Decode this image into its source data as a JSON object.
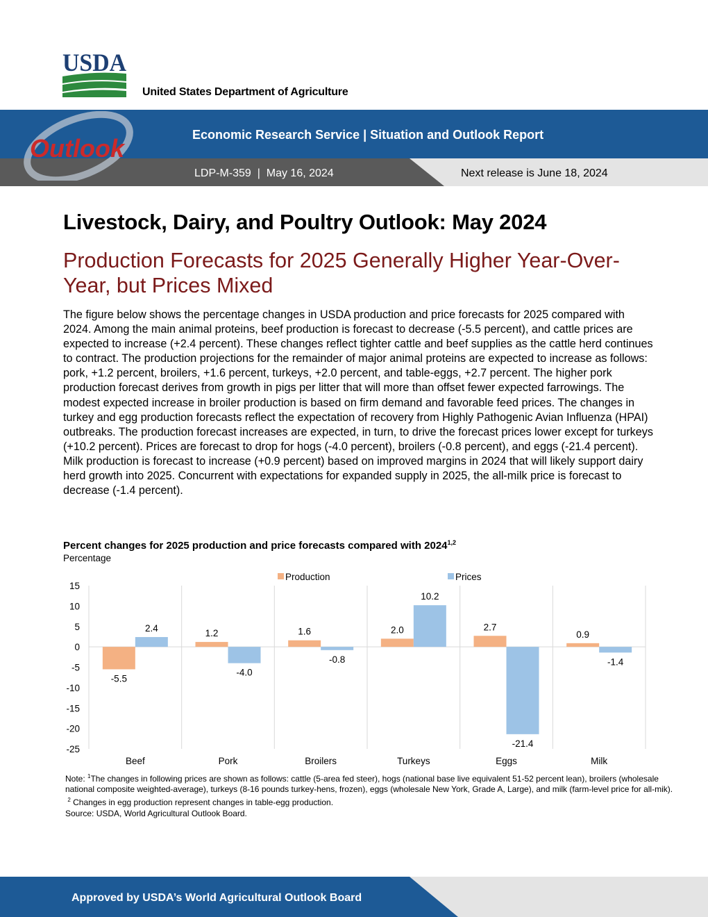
{
  "header": {
    "logo_text": "USDA",
    "agency_name": "United States Department of Agriculture",
    "outlook_logo_text": "Outlook",
    "service_title": "Economic Research Service | Situation and Outlook Report",
    "report_id": "LDP-M-359  |  May 16, 2024",
    "next_release": "Next release is June 18, 2024"
  },
  "colors": {
    "banner_blue": "#1d5a96",
    "banner_dark_gray": "#5a5a5a",
    "subtitle_maroon": "#7b1a1a",
    "production_orange": "#f4b183",
    "prices_blue": "#9dc3e6"
  },
  "title": "Livestock, Dairy, and Poultry Outlook: May 2024",
  "subtitle": "Production Forecasts for 2025 Generally Higher Year-Over-Year, but Prices Mixed",
  "body": "The figure below shows the percentage changes in USDA production and price forecasts for 2025 compared with 2024. Among the main animal proteins, beef production is forecast to decrease (-5.5 percent), and cattle prices are expected to increase (+2.4 percent). These changes reflect tighter cattle and beef supplies as the cattle herd continues to contract. The production projections for the remainder of major animal proteins are expected to increase as follows: pork, +1.2 percent, broilers, +1.6 percent, turkeys, +2.0 percent, and table-eggs, +2.7 percent. The higher pork production forecast derives from growth in pigs per litter that will more than offset fewer expected farrowings. The modest expected increase in broiler production is based on firm demand and favorable feed prices. The changes in turkey and egg production forecasts reflect the expectation of recovery from Highly Pathogenic Avian Influenza (HPAI) outbreaks. The production forecast increases are expected, in turn, to drive the forecast prices lower except for turkeys (+10.2 percent). Prices are forecast to drop for hogs (-4.0 percent), broilers (-0.8 percent), and eggs (-21.4 percent). Milk production is forecast to increase (+0.9 percent) based on improved margins in 2024 that will likely support dairy herd growth into 2025. Concurrent with expectations for expanded supply in 2025, the all-milk price is forecast to decrease (-1.4 percent).",
  "chart_title": "Percent changes for 2025 production and price forecasts compared with 2024",
  "chart_title_sup": "1,2",
  "chart_data": {
    "type": "bar",
    "ylabel": "Percentage",
    "categories": [
      "Beef",
      "Pork",
      "Broilers",
      "Turkeys",
      "Eggs",
      "Milk"
    ],
    "series": [
      {
        "name": "Production",
        "values": [
          -5.5,
          1.2,
          1.6,
          2.0,
          2.7,
          0.9
        ],
        "labels": [
          "-5.5",
          "1.2",
          "1.6",
          "2.0",
          "2.7",
          "0.9"
        ]
      },
      {
        "name": "Prices",
        "values": [
          2.4,
          -4.0,
          -0.8,
          10.2,
          -21.4,
          -1.4
        ],
        "labels": [
          "2.4",
          "-4.0",
          "-0.8",
          "10.2",
          "-21.4",
          "-1.4"
        ]
      }
    ],
    "ylim": [
      -25,
      15
    ],
    "yticks": [
      15,
      10,
      5,
      0,
      -5,
      -10,
      -15,
      -20,
      -25
    ],
    "legend": "top",
    "grid": false
  },
  "notes": {
    "note_prefix": "Note: ",
    "note1_sup": "1",
    "note1": "The changes in following prices are shown as follows: cattle (5-area fed steer), hogs (national base live equivalent 51-52 percent lean), broilers (wholesale national composite weighted-average), turkeys (8-16 pounds turkey-hens, frozen), eggs (wholesale New York, Grade A, Large), and milk (farm-level price for all-mik).",
    "note2_sup": "2",
    "note2": "Changes in egg production represent changes in table-egg production.",
    "source": "Source: USDA, World Agricultural Outlook Board."
  },
  "footer": "Approved by USDA’s World Agricultural Outlook Board"
}
